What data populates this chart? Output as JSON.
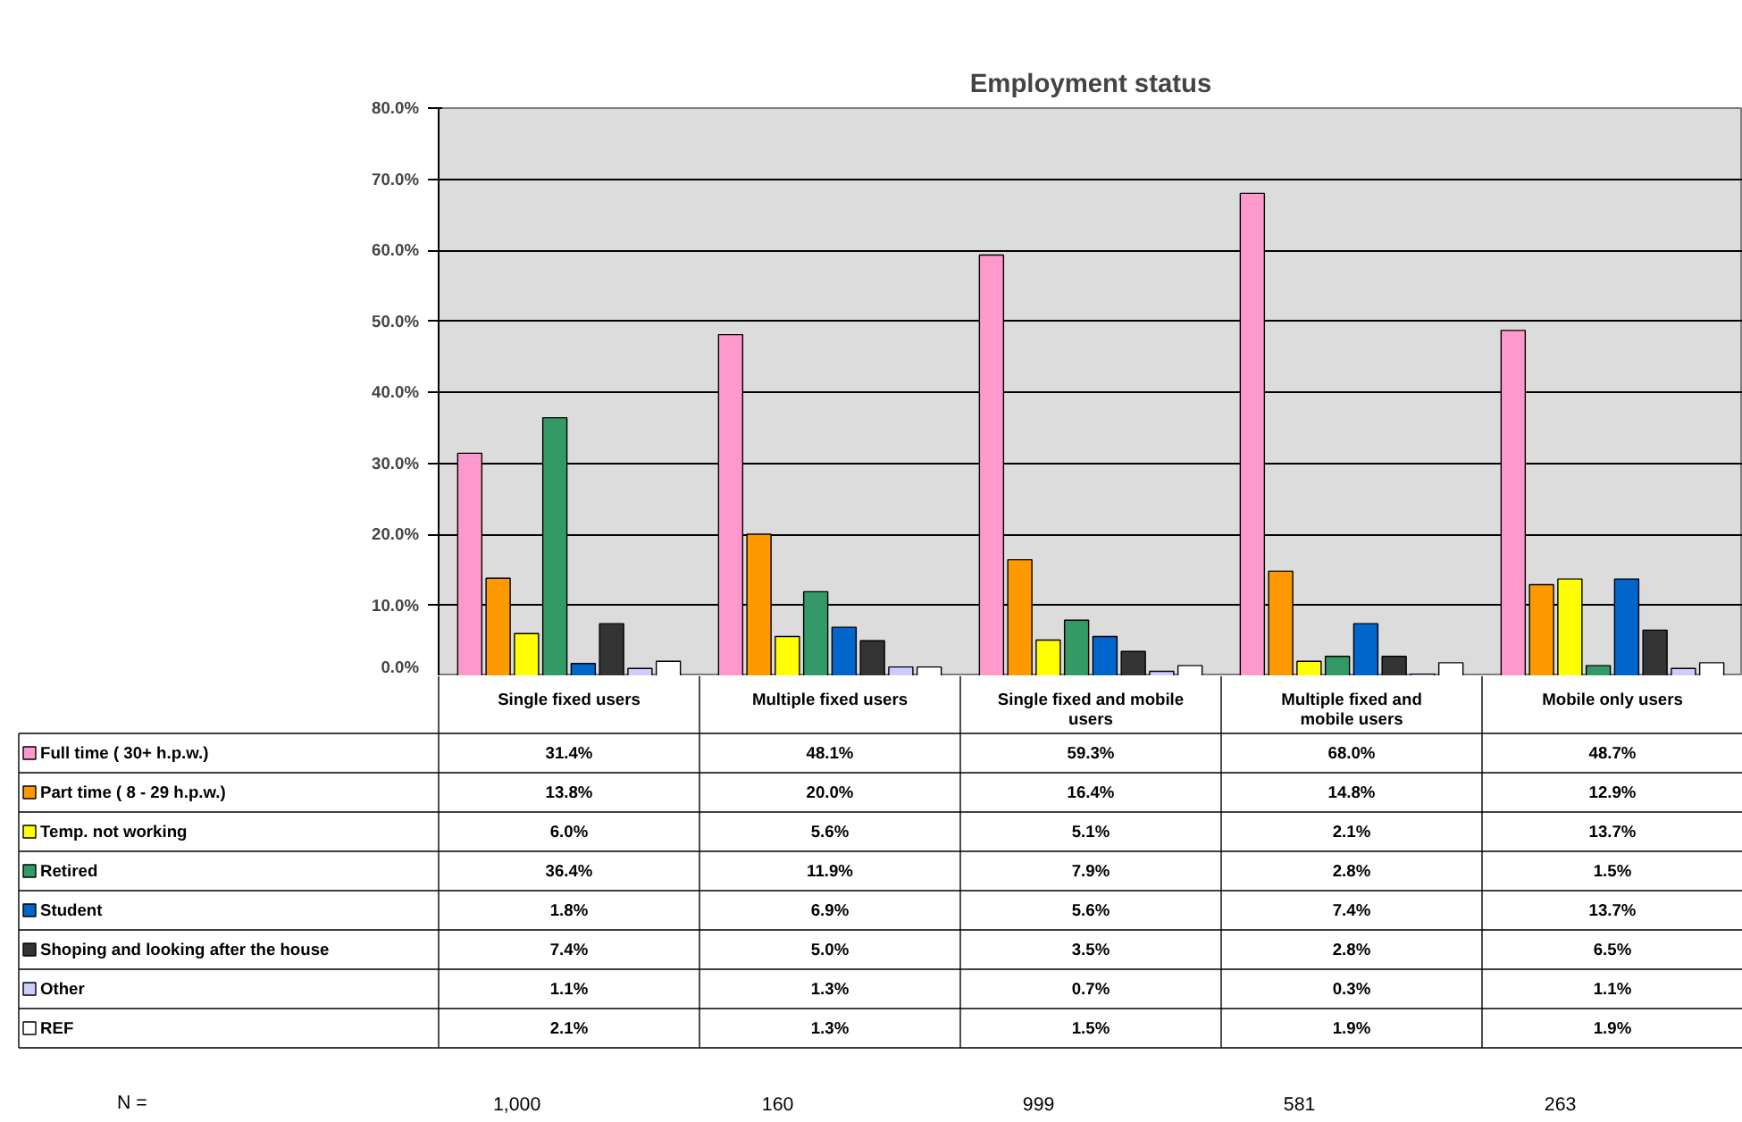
{
  "chart_data": {
    "type": "bar",
    "title": "Employment status",
    "categories": [
      "Single fixed users",
      "Multiple fixed users",
      "Single fixed and mobile users",
      "Multiple fixed and mobile users",
      "Mobile only users"
    ],
    "series": [
      {
        "name": "Full time ( 30+ h.p.w.)",
        "color": "#ff99cc",
        "values": [
          31.4,
          48.1,
          59.3,
          68.0,
          48.7
        ],
        "value_labels": [
          "31.4%",
          "48.1%",
          "59.3%",
          "68.0%",
          "48.7%"
        ]
      },
      {
        "name": "Part time ( 8 - 29 h.p.w.)",
        "color": "#ff9900",
        "values": [
          13.8,
          20.0,
          16.4,
          14.8,
          12.9
        ],
        "value_labels": [
          "13.8%",
          "20.0%",
          "16.4%",
          "14.8%",
          "12.9%"
        ]
      },
      {
        "name": "Temp. not working",
        "color": "#ffff00",
        "values": [
          6.0,
          5.6,
          5.1,
          2.1,
          13.7
        ],
        "value_labels": [
          "6.0%",
          "5.6%",
          "5.1%",
          "2.1%",
          "13.7%"
        ]
      },
      {
        "name": "Retired",
        "color": "#339966",
        "values": [
          36.4,
          11.9,
          7.9,
          2.8,
          1.5
        ],
        "value_labels": [
          "36.4%",
          "11.9%",
          "7.9%",
          "2.8%",
          "1.5%"
        ]
      },
      {
        "name": "Student",
        "color": "#0066cc",
        "values": [
          1.8,
          6.9,
          5.6,
          7.4,
          13.7
        ],
        "value_labels": [
          "1.8%",
          "6.9%",
          "5.6%",
          "7.4%",
          "13.7%"
        ]
      },
      {
        "name": "Shoping and looking after the house",
        "color": "#333333",
        "values": [
          7.4,
          5.0,
          3.5,
          2.8,
          6.5
        ],
        "value_labels": [
          "7.4%",
          "5.0%",
          "3.5%",
          "2.8%",
          "6.5%"
        ]
      },
      {
        "name": "Other",
        "color": "#ccccff",
        "values": [
          1.1,
          1.3,
          0.7,
          0.3,
          1.1
        ],
        "value_labels": [
          "1.1%",
          "1.3%",
          "0.7%",
          "0.3%",
          "1.1%"
        ]
      },
      {
        "name": "REF",
        "color": "#ffffff",
        "values": [
          2.1,
          1.3,
          1.5,
          1.9,
          1.9
        ],
        "value_labels": [
          "2.1%",
          "1.3%",
          "1.5%",
          "1.9%",
          "1.9%"
        ]
      }
    ],
    "ylim": [
      0,
      80
    ],
    "yticks": [
      {
        "value": 0,
        "label": "0.0%"
      },
      {
        "value": 10,
        "label": "10.0%"
      },
      {
        "value": 20,
        "label": "20.0%"
      },
      {
        "value": 30,
        "label": "30.0%"
      },
      {
        "value": 40,
        "label": "40.0%"
      },
      {
        "value": 50,
        "label": "50.0%"
      },
      {
        "value": 60,
        "label": "60.0%"
      },
      {
        "value": 70,
        "label": "70.0%"
      },
      {
        "value": 80,
        "label": "80.0%"
      }
    ],
    "grid": "y",
    "legend": "bottom",
    "annotations": [
      "N =",
      "1,000",
      "160",
      "999",
      "581",
      "263"
    ]
  }
}
